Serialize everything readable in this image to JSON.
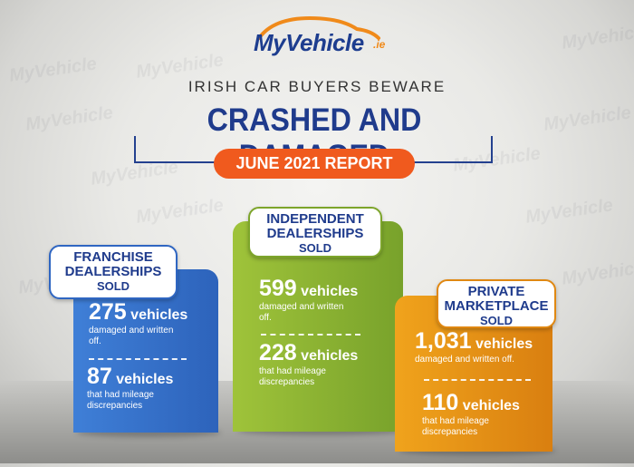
{
  "brand": {
    "name": "MyVehicle",
    "tld": ".ie"
  },
  "subtitle": "IRISH CAR BUYERS BEWARE",
  "title": "CRASHED AND DAMAGED",
  "report": "JUNE 2021 REPORT",
  "colors": {
    "blue": "#2f66c2",
    "green": "#84ad2f",
    "orange": "#e8921a",
    "title": "#1f3b8c",
    "pill": "#f05a1e"
  },
  "chart_data": {
    "type": "bar",
    "categories": [
      "FRANCHISE DEALERSHIPS SOLD",
      "INDEPENDENT DEALERSHIPS SOLD",
      "PRIVATE MARKETPLACE SOLD"
    ],
    "series": [
      {
        "name": "damaged and written off.",
        "values": [
          275,
          599,
          1031
        ]
      },
      {
        "name": "that had mileage discrepancies",
        "values": [
          87,
          228,
          110
        ]
      }
    ]
  },
  "panels": {
    "franchise": {
      "tag": [
        "FRANCHISE",
        "DEALERSHIPS",
        "SOLD"
      ],
      "a_num": "275",
      "a_unit": "vehicles",
      "a_desc1": "damaged and written",
      "a_desc2": "off.",
      "b_num": "87",
      "b_unit": "vehicles",
      "b_desc1": "that had mileage",
      "b_desc2": "discrepancies"
    },
    "independent": {
      "tag": [
        "INDEPENDENT",
        "DEALERSHIPS",
        "SOLD"
      ],
      "a_num": "599",
      "a_unit": "vehicles",
      "a_desc1": "damaged and written",
      "a_desc2": "off.",
      "b_num": "228",
      "b_unit": "vehicles",
      "b_desc1": "that had mileage",
      "b_desc2": "discrepancies"
    },
    "private": {
      "tag": [
        "PRIVATE",
        "MARKETPLACE",
        "SOLD"
      ],
      "a_num": "1,031",
      "a_unit": "vehicles",
      "a_desc1": "damaged and written off.",
      "b_num": "110",
      "b_unit": "vehicles",
      "b_desc1": "that had mileage",
      "b_desc2": "discrepancies"
    }
  }
}
